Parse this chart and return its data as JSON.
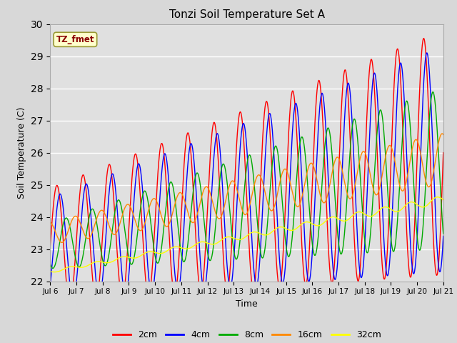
{
  "title": "Tonzi Soil Temperature Set A",
  "xlabel": "Time",
  "ylabel": "Soil Temperature (C)",
  "annotation": "TZ_fmet",
  "ylim": [
    22.0,
    30.0
  ],
  "yticks": [
    22.0,
    23.0,
    24.0,
    25.0,
    26.0,
    27.0,
    28.0,
    29.0,
    30.0
  ],
  "xtick_labels": [
    "Jul 6",
    "Jul 7",
    "Jul 8",
    "Jul 9",
    "Jul 10",
    "Jul 11",
    "Jul 12",
    "Jul 13",
    "Jul 14",
    "Jul 15",
    "Jul 16",
    "Jul 17",
    "Jul 18",
    "Jul 19",
    "Jul 20",
    "Jul 21"
  ],
  "colors": {
    "2cm": "#ff0000",
    "4cm": "#0000ff",
    "8cm": "#00aa00",
    "16cm": "#ff8800",
    "32cm": "#ffff00"
  },
  "legend_labels": [
    "2cm",
    "4cm",
    "8cm",
    "16cm",
    "32cm"
  ],
  "fig_facecolor": "#d8d8d8",
  "ax_facecolor": "#e0e0e0",
  "n_days": 15,
  "points_per_day": 96,
  "trend_2cm": [
    23.1,
    26.0
  ],
  "trend_4cm": [
    23.0,
    25.8
  ],
  "trend_8cm": [
    23.1,
    25.5
  ],
  "trend_16cm": [
    23.5,
    25.8
  ],
  "trend_32cm": [
    22.3,
    24.5
  ],
  "amp_2cm": [
    1.8,
    3.8
  ],
  "amp_4cm": [
    1.6,
    3.5
  ],
  "amp_8cm": [
    0.7,
    2.5
  ],
  "amp_16cm": [
    0.35,
    0.8
  ],
  "amp_32cm": [
    0.04,
    0.12
  ],
  "phase_2cm": 0.0,
  "phase_4cm": 0.12,
  "phase_8cm": 0.35,
  "phase_16cm": 0.7,
  "phase_32cm": 1.5,
  "noise_32cm": 0.06
}
